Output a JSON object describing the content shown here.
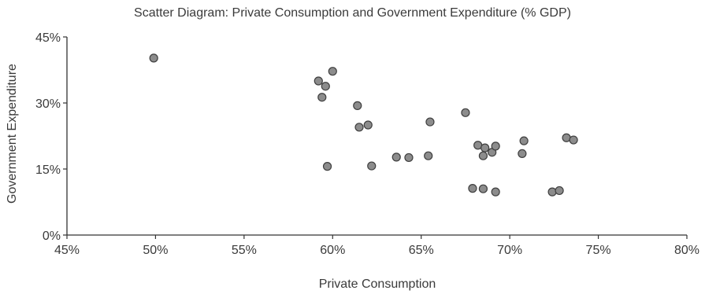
{
  "chart_data": {
    "type": "scatter",
    "title": "Scatter Diagram: Private Consumption and Government Expenditure (% GDP)",
    "xlabel": "Private Consumption",
    "ylabel": "Government Expenditure",
    "xlim": [
      45,
      80
    ],
    "ylim": [
      0,
      45
    ],
    "x_ticks": [
      45,
      50,
      55,
      60,
      65,
      70,
      75,
      80
    ],
    "x_tick_labels": [
      "45%",
      "50%",
      "55%",
      "60%",
      "65%",
      "70%",
      "75%",
      "80%"
    ],
    "y_ticks": [
      0,
      15,
      30,
      45
    ],
    "y_tick_labels": [
      "0%",
      "15%",
      "30%",
      "45%"
    ],
    "grid": false,
    "marker_color": "#8c8c8c",
    "marker_edge_color": "#3f3f3f",
    "points": [
      {
        "x": 49.9,
        "y": 40.2
      },
      {
        "x": 59.2,
        "y": 35.0
      },
      {
        "x": 59.6,
        "y": 33.8
      },
      {
        "x": 60.0,
        "y": 37.2
      },
      {
        "x": 59.4,
        "y": 31.3
      },
      {
        "x": 61.4,
        "y": 29.4
      },
      {
        "x": 61.5,
        "y": 24.5
      },
      {
        "x": 62.0,
        "y": 25.0
      },
      {
        "x": 59.7,
        "y": 15.6
      },
      {
        "x": 62.2,
        "y": 15.7
      },
      {
        "x": 63.6,
        "y": 17.7
      },
      {
        "x": 64.3,
        "y": 17.6
      },
      {
        "x": 65.4,
        "y": 18.0
      },
      {
        "x": 65.5,
        "y": 25.7
      },
      {
        "x": 67.5,
        "y": 27.8
      },
      {
        "x": 68.2,
        "y": 20.4
      },
      {
        "x": 68.6,
        "y": 19.8
      },
      {
        "x": 68.5,
        "y": 18.0
      },
      {
        "x": 69.0,
        "y": 18.8
      },
      {
        "x": 69.2,
        "y": 20.2
      },
      {
        "x": 67.9,
        "y": 10.6
      },
      {
        "x": 68.5,
        "y": 10.5
      },
      {
        "x": 69.2,
        "y": 9.8
      },
      {
        "x": 70.7,
        "y": 18.5
      },
      {
        "x": 70.8,
        "y": 21.4
      },
      {
        "x": 72.4,
        "y": 9.8
      },
      {
        "x": 72.8,
        "y": 10.1
      },
      {
        "x": 73.2,
        "y": 22.1
      },
      {
        "x": 73.6,
        "y": 21.6
      }
    ]
  }
}
